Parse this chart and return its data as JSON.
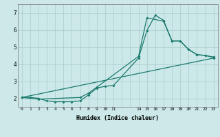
{
  "xlabel": "Humidex (Indice chaleur)",
  "bg_color": "#cce8e8",
  "line_color": "#1a7a6e",
  "grid_color": "#aacccc",
  "xlim": [
    -0.5,
    23.5
  ],
  "ylim": [
    1.5,
    7.5
  ],
  "xtick_labels": [
    "0",
    "1",
    "2",
    "3",
    "4",
    "5",
    "6",
    "7",
    "8",
    "9",
    "10",
    "11",
    "",
    "",
    "14",
    "15",
    "16",
    "17",
    "18",
    "19",
    "20",
    "21",
    "22",
    "23"
  ],
  "yticks": [
    2,
    3,
    4,
    5,
    6,
    7
  ],
  "line1_x": [
    0,
    1,
    2,
    3,
    4,
    5,
    6,
    7,
    8,
    9,
    10,
    11,
    14,
    15,
    16,
    17,
    18,
    19,
    20,
    21,
    22,
    23
  ],
  "line1_y": [
    2.05,
    2.05,
    2.0,
    1.85,
    1.8,
    1.8,
    1.8,
    1.85,
    2.2,
    2.6,
    2.7,
    2.75,
    4.35,
    5.95,
    6.85,
    6.55,
    5.35,
    5.35,
    4.85,
    4.55,
    4.5,
    4.4
  ],
  "line2_x": [
    0,
    2,
    7,
    8,
    9,
    14,
    15,
    17,
    18,
    19,
    20,
    21,
    22,
    23
  ],
  "line2_y": [
    2.05,
    1.95,
    2.05,
    2.3,
    2.65,
    4.45,
    6.7,
    6.5,
    5.35,
    5.35,
    4.85,
    4.55,
    4.5,
    4.4
  ],
  "line3_x": [
    0,
    23
  ],
  "line3_y": [
    2.05,
    4.35
  ]
}
